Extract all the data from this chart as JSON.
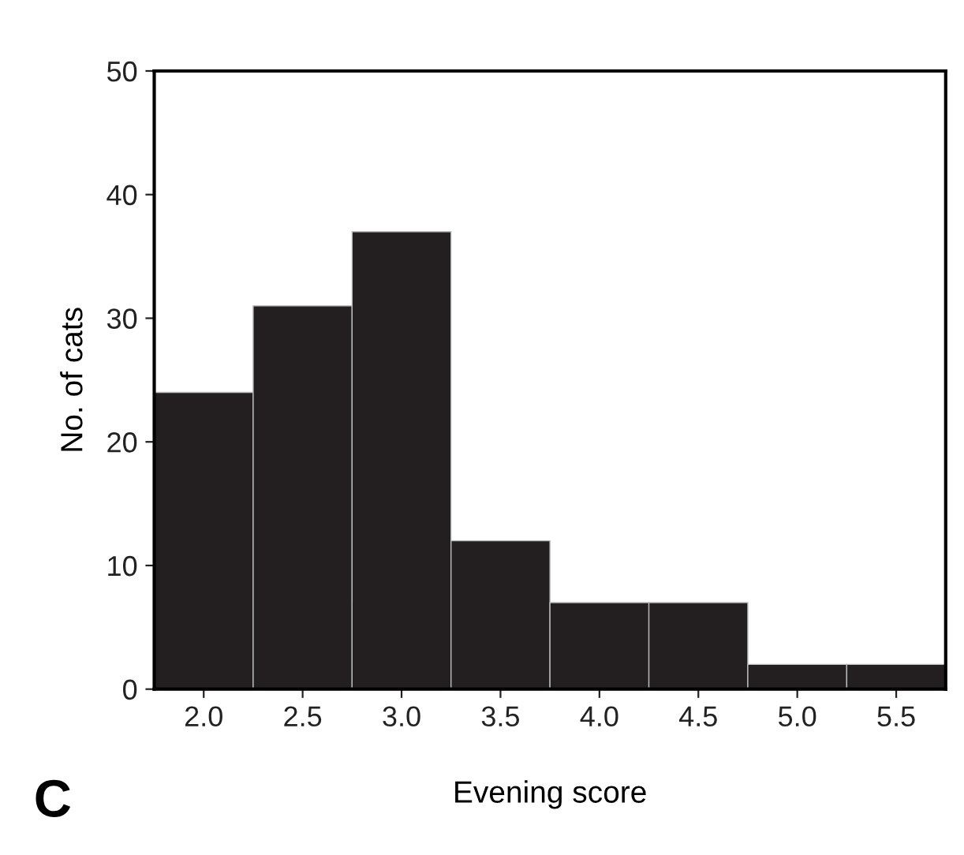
{
  "chart_data": {
    "type": "histogram",
    "xlabel": "Evening score",
    "ylabel": "No. of cats",
    "bins": [
      1.75,
      2.25,
      2.75,
      3.25,
      3.75,
      4.25,
      4.75,
      5.25,
      5.75
    ],
    "values": [
      24,
      31,
      37,
      12,
      7,
      7,
      2,
      2
    ],
    "color": "#231f20",
    "xlim": [
      1.75,
      5.75
    ],
    "xticks": [
      {
        "value": 2,
        "label": "2.0"
      },
      2.5,
      {
        "value": 3,
        "label": "3.0"
      },
      3.5,
      {
        "value": 4,
        "label": "4.0"
      },
      4.5,
      {
        "value": 5,
        "label": "5.0"
      },
      5.5
    ],
    "ylim": [
      0,
      50
    ],
    "yticks": [
      0,
      10,
      20,
      30,
      40,
      50
    ],
    "grid": false,
    "annotations": [
      "C"
    ]
  }
}
